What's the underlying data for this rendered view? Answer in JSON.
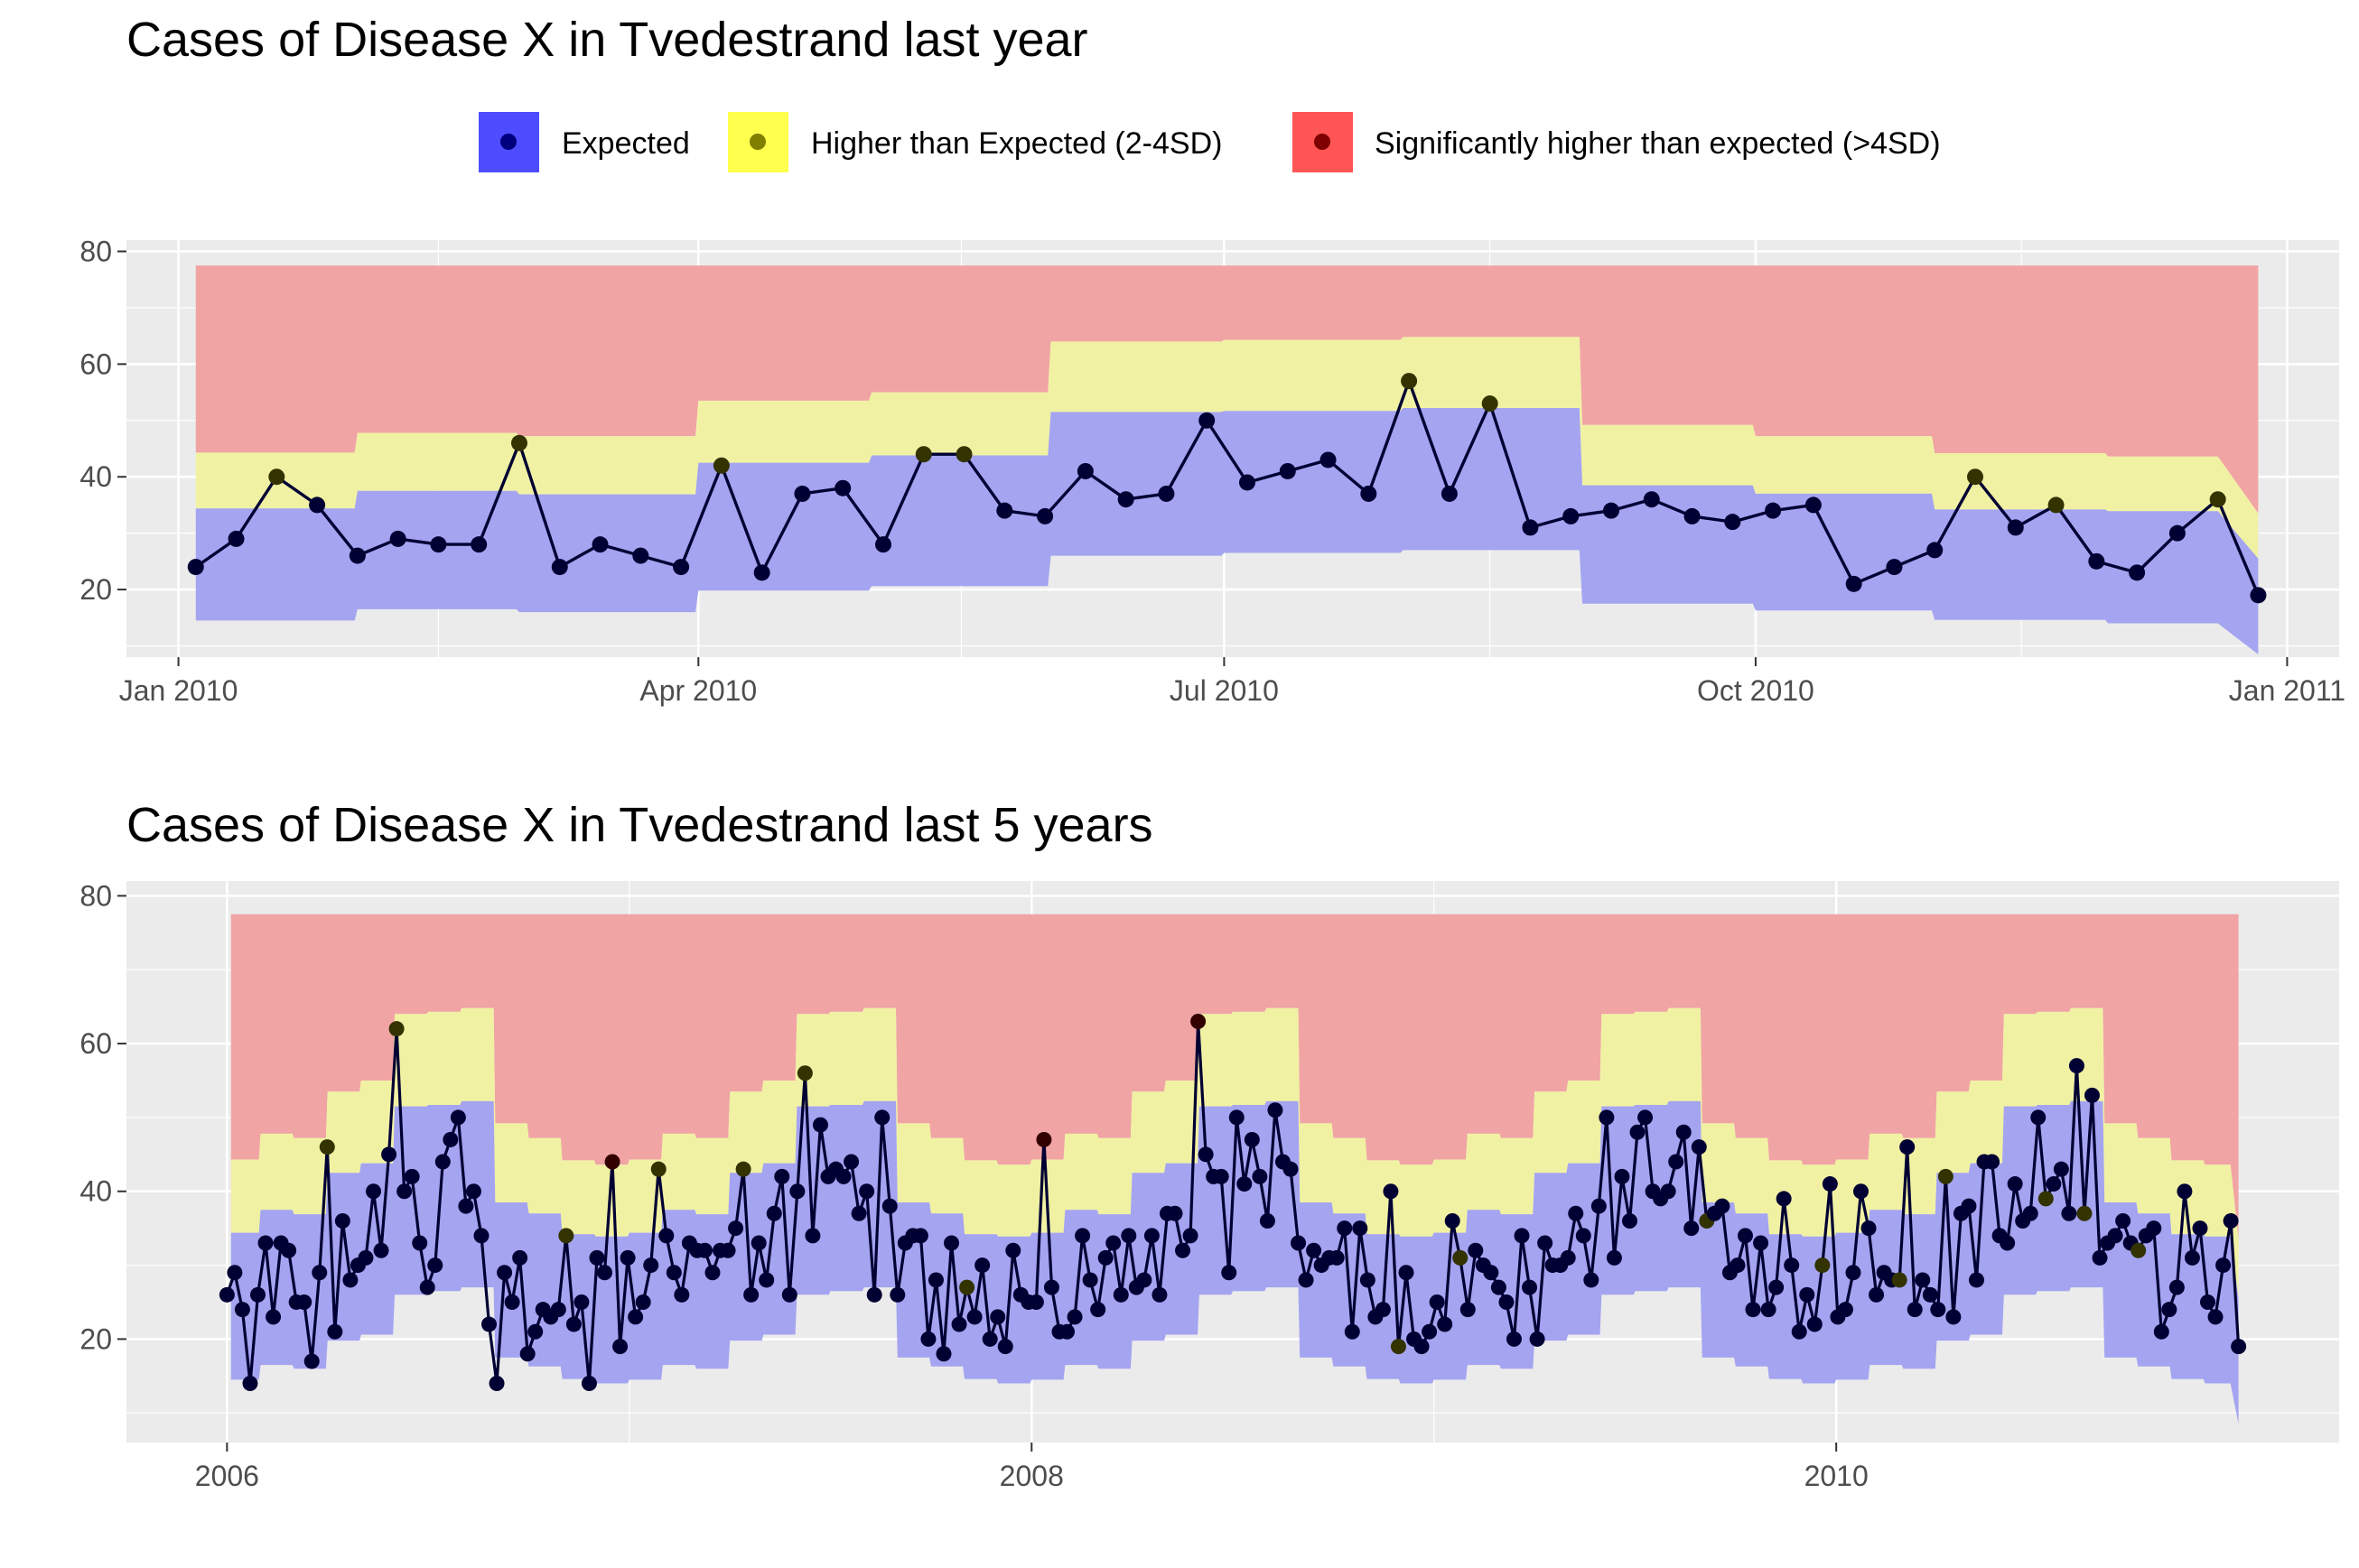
{
  "legend": {
    "items": [
      {
        "label": "Expected",
        "fill": "#4d4dff",
        "dot": "#00007f"
      },
      {
        "label": "Higher than Expected (2-4SD)",
        "fill": "#ffff4d",
        "dot": "#7f7f00"
      },
      {
        "label": "Significantly higher than expected (>4SD)",
        "fill": "#ff5555",
        "dot": "#7f0000"
      }
    ]
  },
  "colors": {
    "panel_bg": "#ebebeb",
    "grid": "#ffffff",
    "band_expected": "#a4a4f1",
    "band_higher": "#f1f1a4",
    "band_significant": "#f1a4a4",
    "line": "#000033",
    "point_expected": "#000033",
    "point_higher": "#333300",
    "point_significant": "#330000"
  },
  "chart_data": [
    {
      "type": "area",
      "title": "Cases of Disease X in Tvedestrand last year",
      "xlabel": "",
      "ylabel": "",
      "x_ticks": [
        "Jan 2010",
        "Apr 2010",
        "Jul 2010",
        "Oct 2010",
        "Jan 2011"
      ],
      "x_tick_dates": [
        "2010-01-01",
        "2010-04-01",
        "2010-07-01",
        "2010-10-01",
        "2011-01-01"
      ],
      "xlim": [
        "2009-12-23",
        "2011-01-10"
      ],
      "y_ticks": [
        20,
        40,
        60,
        80
      ],
      "ylim": [
        8,
        82
      ],
      "grid": true,
      "legend_position": "top",
      "weeks": [
        "2010-01-04",
        "2010-01-11",
        "2010-01-18",
        "2010-01-25",
        "2010-02-01",
        "2010-02-08",
        "2010-02-15",
        "2010-02-22",
        "2010-03-01",
        "2010-03-08",
        "2010-03-15",
        "2010-03-22",
        "2010-03-29",
        "2010-04-05",
        "2010-04-12",
        "2010-04-19",
        "2010-04-26",
        "2010-05-03",
        "2010-05-10",
        "2010-05-17",
        "2010-05-24",
        "2010-05-31",
        "2010-06-07",
        "2010-06-14",
        "2010-06-21",
        "2010-06-28",
        "2010-07-05",
        "2010-07-12",
        "2010-07-19",
        "2010-07-26",
        "2010-08-02",
        "2010-08-09",
        "2010-08-16",
        "2010-08-23",
        "2010-08-30",
        "2010-09-06",
        "2010-09-13",
        "2010-09-20",
        "2010-09-27",
        "2010-10-04",
        "2010-10-11",
        "2010-10-18",
        "2010-10-25",
        "2010-11-01",
        "2010-11-08",
        "2010-11-15",
        "2010-11-22",
        "2010-11-29",
        "2010-12-06",
        "2010-12-13",
        "2010-12-20",
        "2010-12-27"
      ],
      "cases": [
        24,
        29,
        40,
        35,
        26,
        29,
        28,
        28,
        46,
        24,
        28,
        26,
        24,
        42,
        23,
        37,
        38,
        28,
        44,
        44,
        34,
        33,
        41,
        36,
        37,
        50,
        39,
        41,
        43,
        37,
        57,
        37,
        53,
        31,
        33,
        34,
        36,
        33,
        32,
        34,
        35,
        21,
        24,
        27,
        40,
        31,
        35,
        25,
        23,
        30,
        36,
        19
      ],
      "band_months": [
        "2010-01",
        "2010-02",
        "2010-03",
        "2010-04",
        "2010-05",
        "2010-06",
        "2010-07",
        "2010-08",
        "2010-09",
        "2010-10",
        "2010-11",
        "2010-12"
      ],
      "band_expected_low": [
        14.5,
        16.5,
        16,
        19.8,
        20.6,
        26,
        26.5,
        27,
        17.5,
        16.3,
        14.6,
        14
      ],
      "band_expected_high": [
        34.4,
        37.5,
        36.9,
        42.5,
        43.8,
        51.5,
        51.7,
        52.2,
        38.5,
        37,
        34.2,
        33.9
      ],
      "band_higher_high": [
        44.3,
        47.8,
        47.2,
        53.5,
        55,
        64,
        64.3,
        64.8,
        49.2,
        47.2,
        44.2,
        43.6
      ],
      "band_significant_high": 77.5,
      "end_values": {
        "expected_low": 8.5,
        "expected_high": 25.5,
        "higher_high": 33.5
      },
      "status": {
        "higher": [
          2,
          8,
          13,
          18,
          19,
          30,
          32,
          44,
          46,
          50
        ],
        "significant": []
      }
    },
    {
      "type": "area",
      "title": "Cases of Disease X in Tvedestrand last 5 years",
      "xlabel": "",
      "ylabel": "",
      "x_ticks": [
        "2006",
        "2008",
        "2010"
      ],
      "x_tick_years": [
        2006,
        2008,
        2010
      ],
      "xlim": [
        2005.75,
        2011.25
      ],
      "y_ticks": [
        20,
        40,
        60,
        80
      ],
      "ylim": [
        6,
        82
      ],
      "grid": true,
      "start_year": 2006,
      "band_expected_low": [
        14.5,
        16.5,
        16,
        19.8,
        20.6,
        26,
        26.5,
        27,
        17.5,
        16.3,
        14.6,
        14
      ],
      "band_expected_high": [
        34.4,
        37.5,
        36.9,
        42.5,
        43.8,
        51.5,
        51.7,
        52.2,
        38.5,
        37,
        34.2,
        33.9
      ],
      "band_higher_high": [
        44.3,
        47.8,
        47.2,
        53.5,
        55,
        64,
        64.3,
        64.8,
        49.2,
        47.2,
        44.2,
        43.6
      ],
      "band_significant_high": 77.5,
      "end_values": {
        "expected_low": 8.5,
        "expected_high": 25.5,
        "higher_high": 33.5
      },
      "cases": [
        26,
        29,
        24,
        14,
        26,
        33,
        23,
        33,
        32,
        25,
        25,
        17,
        29,
        46,
        21,
        36,
        28,
        30,
        31,
        40,
        32,
        45,
        62,
        40,
        42,
        33,
        27,
        30,
        44,
        47,
        50,
        38,
        40,
        34,
        22,
        14,
        29,
        25,
        31,
        18,
        21,
        24,
        23,
        24,
        34,
        22,
        25,
        14,
        31,
        29,
        44,
        19,
        31,
        23,
        25,
        30,
        43,
        34,
        29,
        26,
        33,
        32,
        32,
        29,
        32,
        32,
        35,
        43,
        26,
        33,
        28,
        37,
        42,
        26,
        40,
        56,
        34,
        49,
        42,
        43,
        42,
        44,
        37,
        40,
        26,
        50,
        38,
        26,
        33,
        34,
        34,
        20,
        28,
        18,
        33,
        22,
        27,
        23,
        30,
        20,
        23,
        19,
        32,
        26,
        25,
        25,
        47,
        27,
        21,
        21,
        23,
        34,
        28,
        24,
        31,
        33,
        26,
        34,
        27,
        28,
        34,
        26,
        37,
        37,
        32,
        34,
        63,
        45,
        42,
        42,
        29,
        50,
        41,
        47,
        42,
        36,
        51,
        44,
        43,
        33,
        28,
        32,
        30,
        31,
        31,
        35,
        21,
        35,
        28,
        23,
        24,
        40,
        19,
        29,
        20,
        19,
        21,
        25,
        22,
        36,
        31,
        24,
        32,
        30,
        29,
        27,
        25,
        20,
        34,
        27,
        20,
        33,
        30,
        30,
        31,
        37,
        34,
        28,
        38,
        50,
        31,
        42,
        36,
        48,
        50,
        40,
        39,
        40,
        44,
        48,
        35,
        46,
        36,
        37,
        38,
        29,
        30,
        34,
        24,
        33,
        24,
        27,
        39,
        30,
        21,
        26,
        22,
        30,
        41,
        23,
        24,
        29,
        40,
        35,
        26,
        29,
        28,
        28,
        46,
        24,
        28,
        26,
        24,
        42,
        23,
        37,
        38,
        28,
        44,
        44,
        34,
        33,
        41,
        36,
        37,
        50,
        39,
        41,
        43,
        37,
        57,
        37,
        53,
        31,
        33,
        34,
        36,
        33,
        32,
        34,
        35,
        21,
        24,
        27,
        40,
        31,
        35,
        25,
        23,
        30,
        36,
        19
      ],
      "status": {
        "higher": [
          13,
          22,
          44,
          56,
          67,
          75,
          96,
          152,
          160,
          192,
          207,
          217,
          223,
          236,
          241,
          248,
          262,
          264,
          267,
          271,
          262
        ],
        "significant": [
          50,
          106,
          126
        ]
      }
    }
  ]
}
